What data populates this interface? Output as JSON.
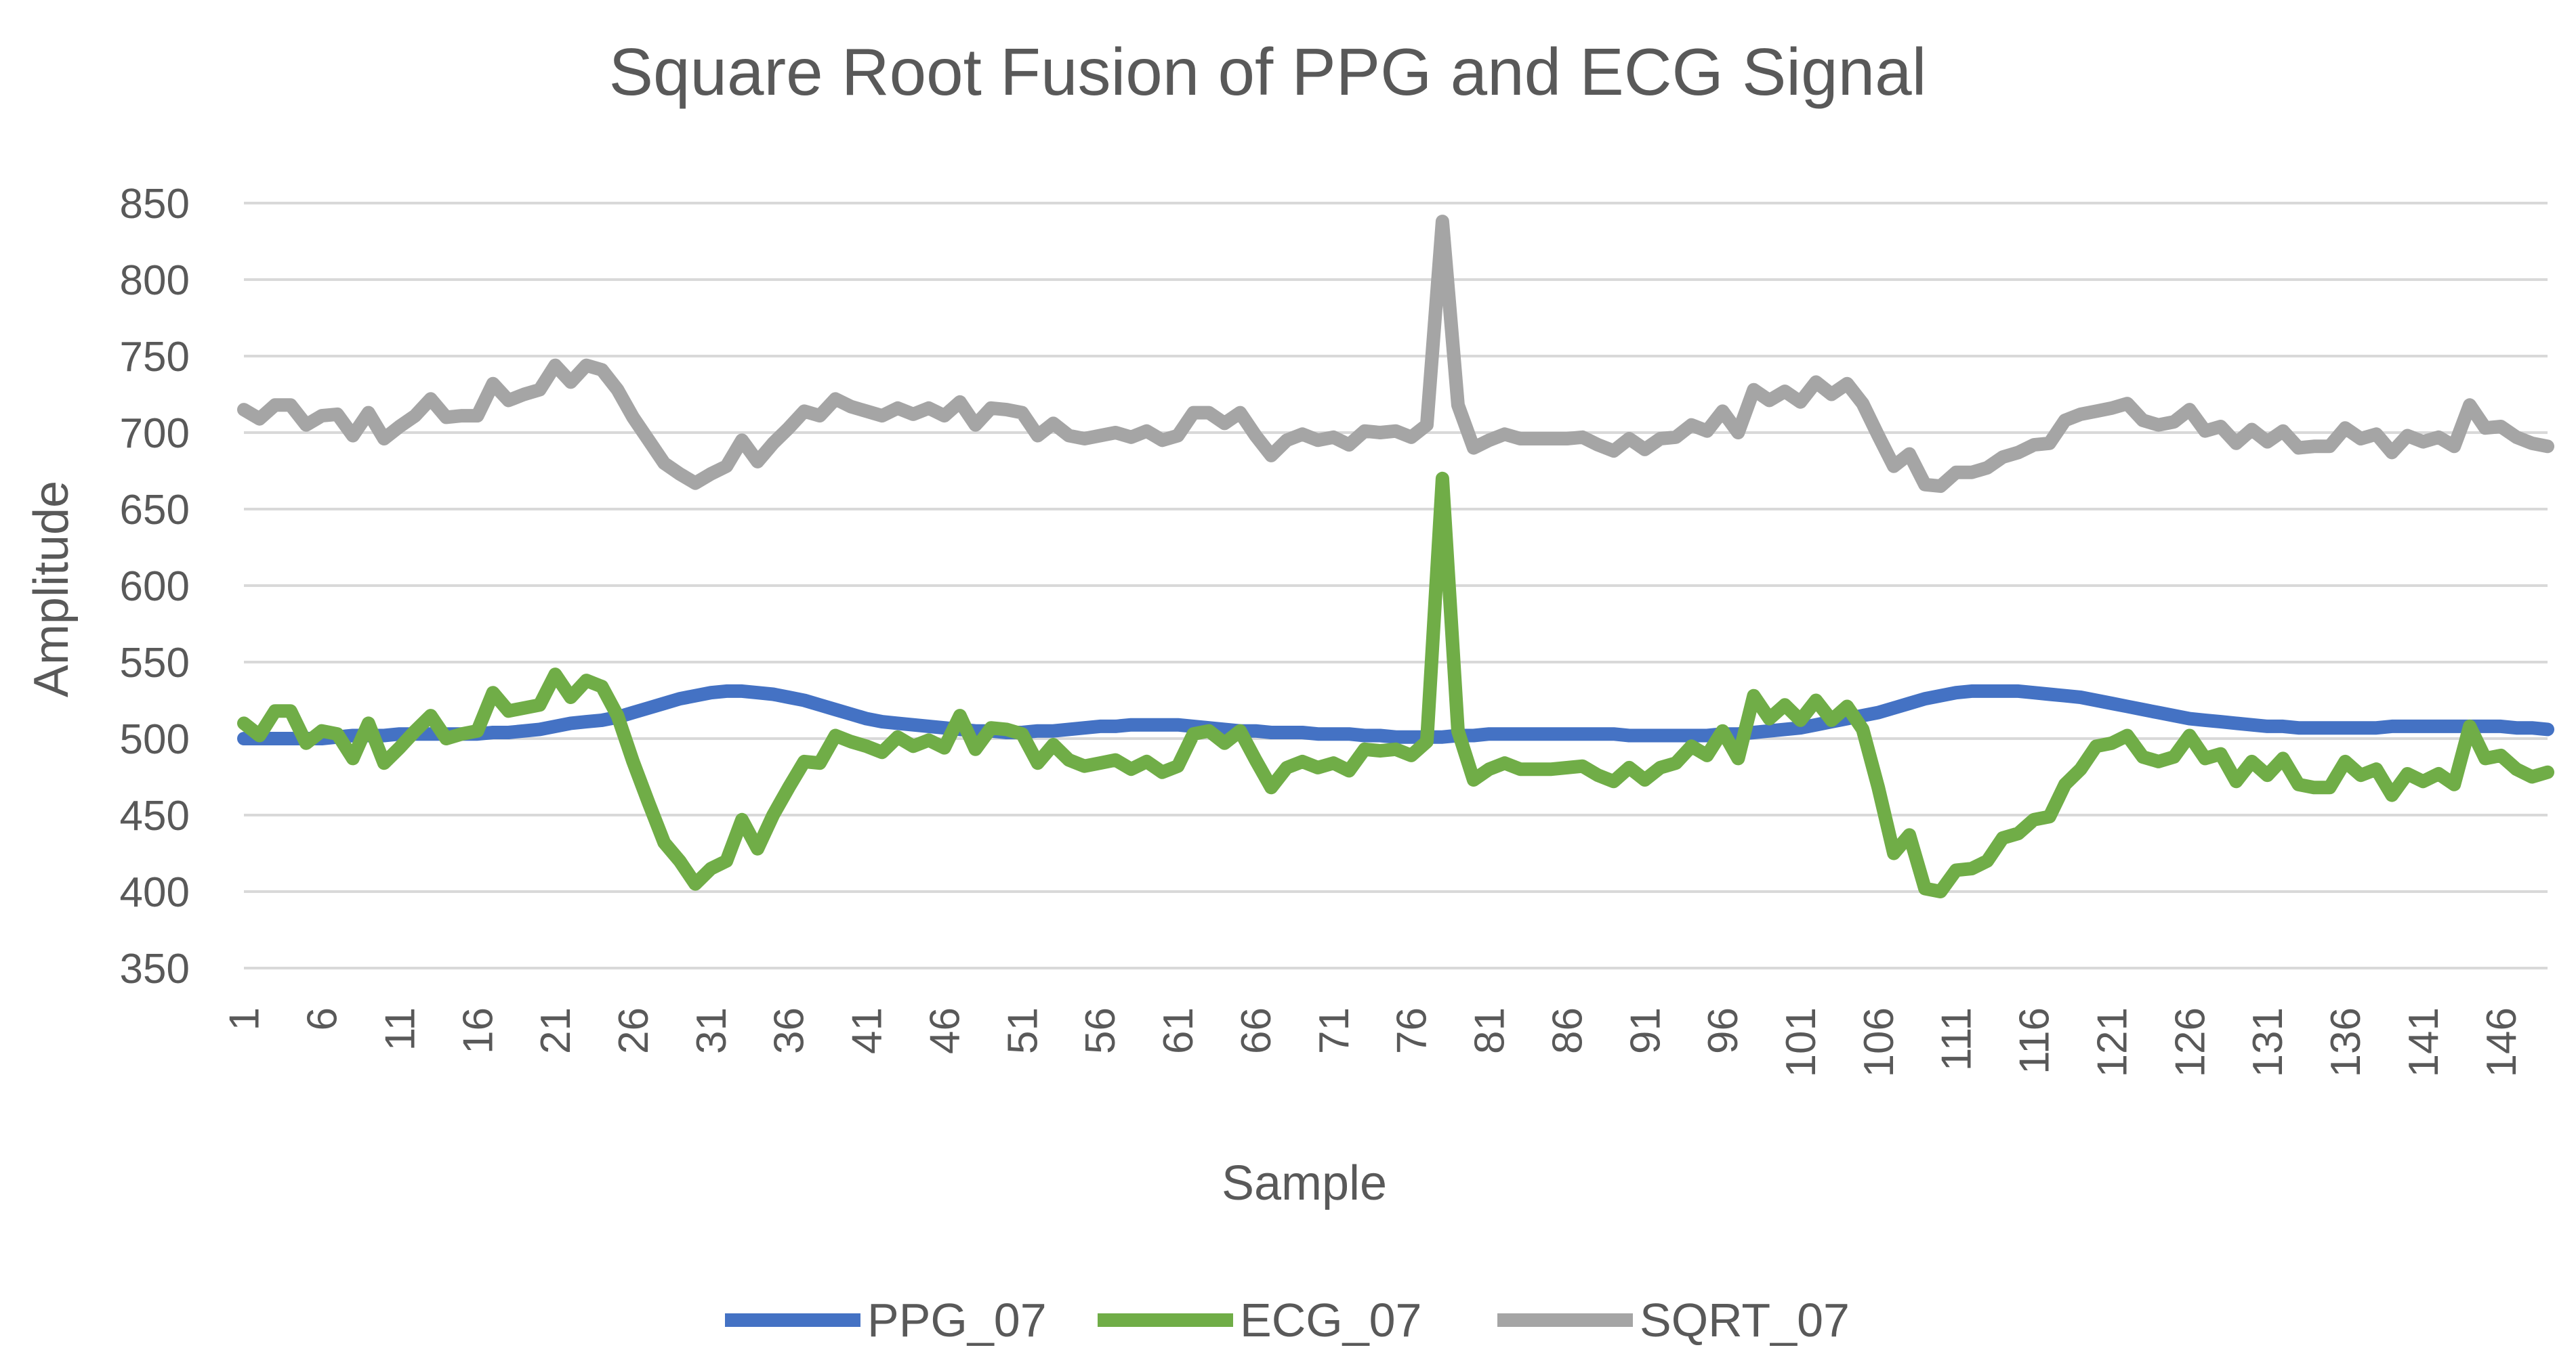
{
  "chart_data": {
    "type": "line",
    "title": "Square Root Fusion of PPG and ECG Signal",
    "xlabel": "Sample",
    "ylabel": "Amplitude",
    "ylim": [
      350,
      850
    ],
    "ytick_step": 50,
    "ytick_labels": [
      "350",
      "400",
      "450",
      "500",
      "550",
      "600",
      "650",
      "700",
      "750",
      "800",
      "850"
    ],
    "grid": true,
    "legend_position": "bottom",
    "x_start": 1,
    "x_end": 149,
    "xtick_labels": [
      "1",
      "6",
      "11",
      "16",
      "21",
      "26",
      "31",
      "36",
      "41",
      "46",
      "51",
      "56",
      "61",
      "66",
      "71",
      "76",
      "81",
      "86",
      "91",
      "96",
      "101",
      "106",
      "111",
      "116",
      "121",
      "126",
      "131",
      "136",
      "141",
      "146"
    ],
    "series": [
      {
        "name": "PPG_07",
        "color": "#4472c4",
        "values": [
          500,
          500,
          500,
          500,
          500,
          500,
          501,
          502,
          502,
          502,
          503,
          503,
          503,
          503,
          503,
          503,
          504,
          504,
          505,
          506,
          508,
          510,
          511,
          512,
          514,
          517,
          520,
          523,
          526,
          528,
          530,
          531,
          531,
          530,
          529,
          527,
          525,
          522,
          519,
          516,
          513,
          511,
          510,
          509,
          508,
          507,
          506,
          505,
          505,
          504,
          504,
          505,
          505,
          506,
          507,
          508,
          508,
          509,
          509,
          509,
          509,
          508,
          507,
          506,
          505,
          505,
          504,
          504,
          504,
          503,
          503,
          503,
          502,
          502,
          501,
          501,
          501,
          501,
          502,
          502,
          503,
          503,
          503,
          503,
          503,
          503,
          503,
          503,
          503,
          502,
          502,
          502,
          502,
          502,
          502,
          503,
          503,
          504,
          505,
          506,
          507,
          509,
          511,
          513,
          515,
          517,
          520,
          523,
          526,
          528,
          530,
          531,
          531,
          531,
          531,
          530,
          529,
          528,
          527,
          525,
          523,
          521,
          519,
          517,
          515,
          513,
          512,
          511,
          510,
          509,
          508,
          508,
          507,
          507,
          507,
          507,
          507,
          507,
          508,
          508,
          508,
          508,
          508,
          508,
          508,
          508,
          507,
          507,
          506
        ],
        "note": ""
      },
      {
        "name": "ECG_07",
        "color": "#70ad47",
        "values": [
          510,
          502,
          518,
          518,
          497,
          505,
          503,
          487,
          510,
          484,
          494,
          505,
          515,
          500,
          503,
          505,
          530,
          518,
          520,
          522,
          542,
          527,
          538,
          534,
          515,
          485,
          458,
          432,
          420,
          405,
          415,
          420,
          447,
          428,
          450,
          468,
          485,
          484,
          502,
          498,
          495,
          491,
          501,
          495,
          499,
          494,
          515,
          493,
          507,
          506,
          503,
          484,
          496,
          486,
          482,
          484,
          486,
          480,
          485,
          478,
          482,
          503,
          505,
          497,
          505,
          486,
          468,
          481,
          485,
          481,
          484,
          479,
          493,
          492,
          493,
          489,
          498,
          670,
          505,
          473,
          480,
          484,
          480,
          480,
          480,
          481,
          482,
          476,
          472,
          481,
          473,
          481,
          484,
          495,
          489,
          505,
          487,
          528,
          513,
          522,
          512,
          525,
          512,
          521,
          506,
          468,
          425,
          437,
          402,
          400,
          414,
          415,
          420,
          435,
          438,
          447,
          449,
          470,
          480,
          495,
          497,
          502,
          488,
          485,
          488,
          502,
          487,
          490,
          472,
          485,
          476,
          487,
          470,
          468,
          468,
          485,
          476,
          480,
          463,
          477,
          472,
          477,
          470,
          508,
          487,
          489,
          480,
          475,
          478
        ],
        "note": ""
      },
      {
        "name": "SQRT_07",
        "color": "#a5a5a5",
        "values": [
          715,
          709,
          718,
          718,
          705,
          711,
          712,
          698,
          713,
          696,
          704,
          711,
          722,
          710,
          711,
          711,
          732,
          721,
          725,
          728,
          744,
          733,
          744,
          741,
          728,
          710,
          695,
          680,
          673,
          667,
          673,
          678,
          695,
          681,
          693,
          703,
          714,
          711,
          722,
          717,
          714,
          711,
          716,
          712,
          716,
          711,
          720,
          705,
          716,
          715,
          713,
          698,
          706,
          698,
          696,
          698,
          700,
          697,
          701,
          695,
          698,
          713,
          713,
          706,
          713,
          698,
          685,
          695,
          699,
          695,
          697,
          692,
          701,
          700,
          701,
          697,
          705,
          838,
          718,
          690,
          695,
          699,
          696,
          696,
          696,
          696,
          697,
          692,
          688,
          696,
          689,
          696,
          697,
          705,
          701,
          714,
          700,
          728,
          721,
          727,
          720,
          733,
          725,
          732,
          719,
          698,
          678,
          686,
          666,
          665,
          674,
          674,
          677,
          684,
          687,
          692,
          693,
          708,
          712,
          714,
          716,
          719,
          708,
          705,
          707,
          715,
          701,
          704,
          693,
          702,
          694,
          701,
          690,
          691,
          691,
          703,
          696,
          699,
          687,
          698,
          694,
          697,
          691,
          718,
          703,
          704,
          697,
          693,
          691
        ],
        "note": ""
      }
    ]
  }
}
